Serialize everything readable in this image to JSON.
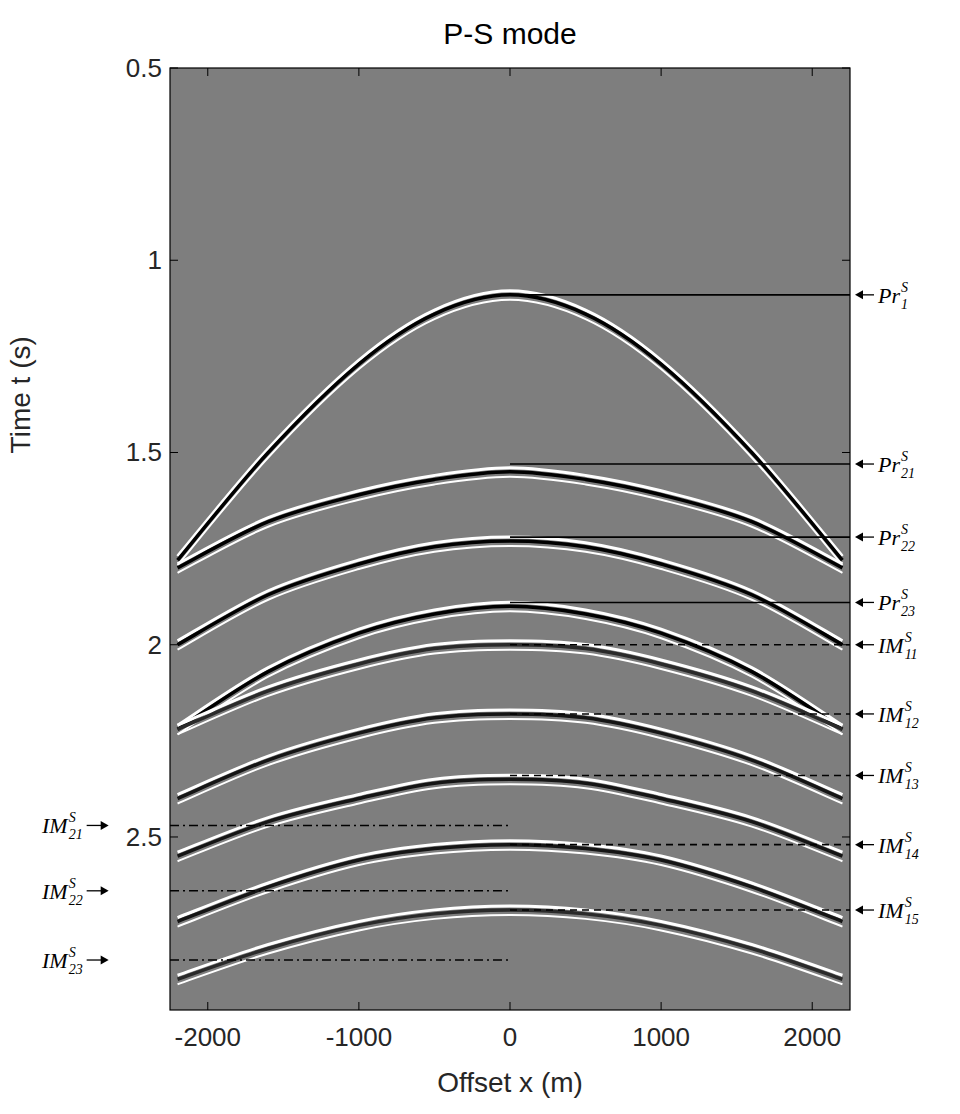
{
  "chart_data": {
    "type": "seismic",
    "title": "P-S mode",
    "x_label": "Offset x (m)",
    "y_label": "Time t (s)",
    "xlim": [
      -2250,
      2250
    ],
    "ylim": [
      0.5,
      2.95
    ],
    "xticks": [
      -2000,
      -1000,
      0,
      1000,
      2000
    ],
    "yticks": [
      0.5,
      1,
      1.5,
      2,
      2.5
    ],
    "x": [
      -2200,
      -1600,
      -1000,
      -500,
      0,
      500,
      1000,
      1600,
      2200
    ],
    "series": [
      {
        "color": "#000000",
        "values": [
          1.78,
          1.5,
          1.27,
          1.14,
          1.09,
          1.14,
          1.27,
          1.5,
          1.78
        ]
      },
      {
        "color": "#000000",
        "values": [
          1.8,
          1.68,
          1.61,
          1.57,
          1.55,
          1.57,
          1.61,
          1.68,
          1.8
        ]
      },
      {
        "color": "#000000",
        "values": [
          2.0,
          1.87,
          1.79,
          1.745,
          1.73,
          1.745,
          1.79,
          1.87,
          2.0
        ]
      },
      {
        "color": "#000000",
        "values": [
          2.22,
          2.07,
          1.97,
          1.92,
          1.9,
          1.92,
          1.97,
          2.07,
          2.22
        ]
      },
      {
        "color": "#2a2a2a",
        "values": [
          2.22,
          2.12,
          2.05,
          2.01,
          2.0,
          2.01,
          2.05,
          2.12,
          2.22
        ]
      },
      {
        "color": "#151515",
        "values": [
          2.4,
          2.3,
          2.23,
          2.19,
          2.18,
          2.19,
          2.23,
          2.3,
          2.4
        ]
      },
      {
        "color": "#151515",
        "values": [
          2.55,
          2.46,
          2.4,
          2.36,
          2.35,
          2.36,
          2.4,
          2.46,
          2.55
        ]
      },
      {
        "color": "#151515",
        "values": [
          2.72,
          2.63,
          2.56,
          2.53,
          2.52,
          2.53,
          2.56,
          2.63,
          2.72
        ]
      },
      {
        "color": "#2a2a2a",
        "values": [
          2.87,
          2.79,
          2.73,
          2.7,
          2.69,
          2.7,
          2.73,
          2.79,
          2.87
        ]
      }
    ],
    "annotations": [
      {
        "base": "Pr",
        "sub": "1",
        "sup": "S",
        "value": 1.09,
        "side": "right",
        "line_style": "solid"
      },
      {
        "base": "Pr",
        "sub": "21",
        "sup": "S",
        "value": 1.53,
        "side": "right",
        "line_style": "solid"
      },
      {
        "base": "Pr",
        "sub": "22",
        "sup": "S",
        "value": 1.72,
        "side": "right",
        "line_style": "solid"
      },
      {
        "base": "Pr",
        "sub": "23",
        "sup": "S",
        "value": 1.89,
        "side": "right",
        "line_style": "solid"
      },
      {
        "base": "IM",
        "sub": "11",
        "sup": "S",
        "value": 2.0,
        "side": "right",
        "line_style": "dashed"
      },
      {
        "base": "IM",
        "sub": "12",
        "sup": "S",
        "value": 2.18,
        "side": "right",
        "line_style": "dashed"
      },
      {
        "base": "IM",
        "sub": "13",
        "sup": "S",
        "value": 2.34,
        "side": "right",
        "line_style": "dashed"
      },
      {
        "base": "IM",
        "sub": "14",
        "sup": "S",
        "value": 2.52,
        "side": "right",
        "line_style": "dashed"
      },
      {
        "base": "IM",
        "sub": "15",
        "sup": "S",
        "value": 2.69,
        "side": "right",
        "line_style": "dashed"
      },
      {
        "base": "IM",
        "sub": "21",
        "sup": "S",
        "value": 2.47,
        "side": "left",
        "line_style": "dashdot"
      },
      {
        "base": "IM",
        "sub": "22",
        "sup": "S",
        "value": 2.64,
        "side": "left",
        "line_style": "dashdot"
      },
      {
        "base": "IM",
        "sub": "23",
        "sup": "S",
        "value": 2.82,
        "side": "left",
        "line_style": "dashdot"
      }
    ]
  }
}
